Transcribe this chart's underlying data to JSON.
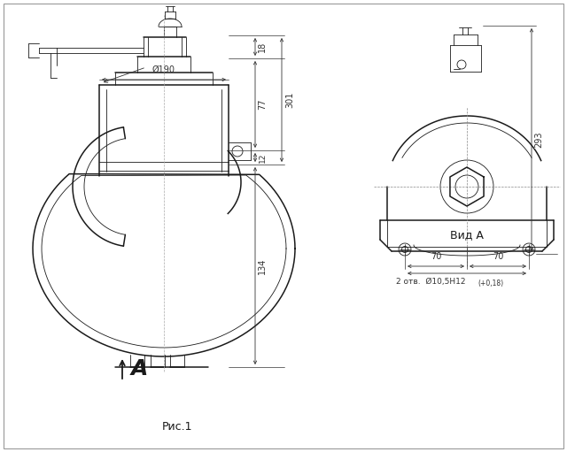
{
  "bg_color": "#ffffff",
  "line_color": "#1a1a1a",
  "dim_color": "#333333",
  "gray_line": "#888888",
  "title": "Рис.1",
  "view_label": "Вид А",
  "arrow_label": "А",
  "dim_190": "Ø190",
  "dim_18": "18",
  "dim_77": "77",
  "dim_12": "12",
  "dim_301": "301",
  "dim_134": "134",
  "dim_293": "293",
  "dim_70a": "70",
  "dim_70b": "70",
  "dim_hole": "2 отв.  Ø10,5Н12",
  "dim_hole_tol": "(+0,18)"
}
